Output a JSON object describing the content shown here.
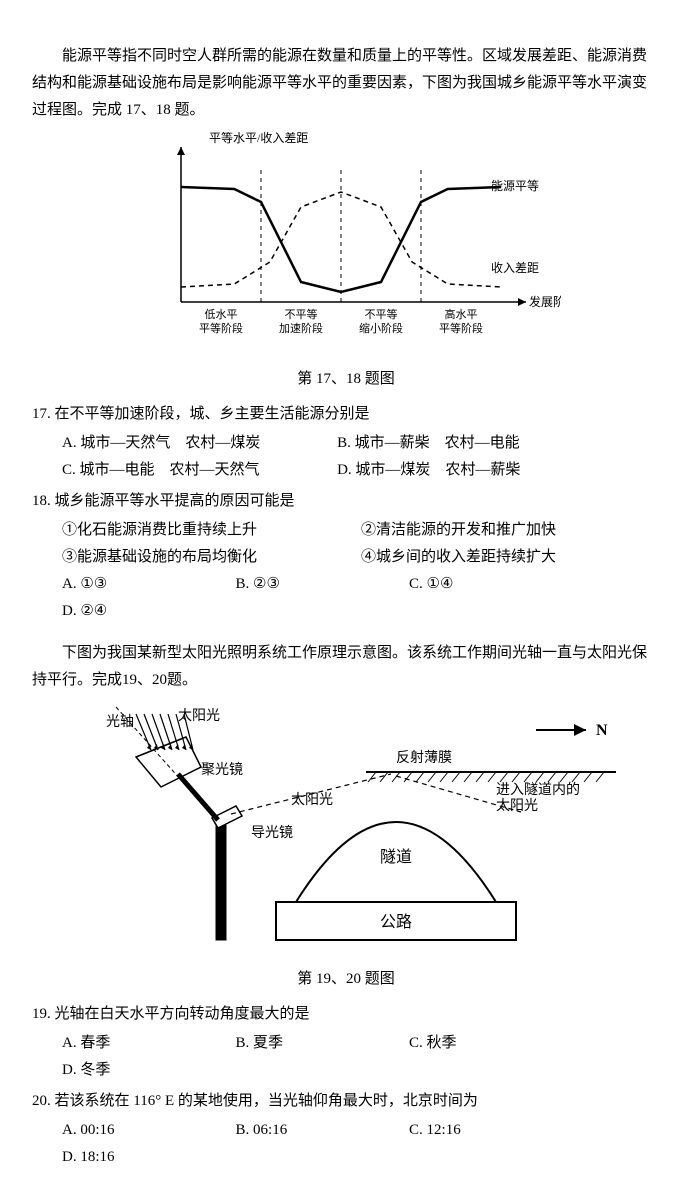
{
  "intro": {
    "p1": "能源平等指不同时空人群所需的能源在数量和质量上的平等性。区域发展差距、能源消费结构和能源基础设施布局是影响能源平等水平的重要因素，下图为我国城乡能源平等水平演变过程图。完成 17、18 题。"
  },
  "chart1": {
    "caption": "第 17、18 题图",
    "y_label": "平等水平/收入差距",
    "x_label": "发展阶段",
    "legend_solid": "能源平等",
    "legend_dashed": "收入差距",
    "x_ticks": [
      "低水平\n平等阶段",
      "不平等\n加速阶段",
      "不平等\n缩小阶段",
      "高水平\n平等阶段"
    ],
    "axis_color": "#000000",
    "solid_color": "#000000",
    "dashed_color": "#000000",
    "background": "#ffffff",
    "solid_points": [
      [
        0,
        25
      ],
      [
        60,
        27
      ],
      [
        90,
        40
      ],
      [
        135,
        120
      ],
      [
        180,
        130
      ],
      [
        225,
        120
      ],
      [
        270,
        40
      ],
      [
        300,
        27
      ],
      [
        360,
        25
      ]
    ],
    "dashed_points": [
      [
        0,
        125
      ],
      [
        60,
        122
      ],
      [
        100,
        100
      ],
      [
        135,
        45
      ],
      [
        180,
        30
      ],
      [
        225,
        45
      ],
      [
        260,
        100
      ],
      [
        300,
        122
      ],
      [
        360,
        125
      ]
    ],
    "ylim": [
      0,
      140
    ],
    "font_size_label": 12,
    "font_size_tick": 11
  },
  "q17": {
    "stem": "17. 在不平等加速阶段，城、乡主要生活能源分别是",
    "A": "A. 城市—天然气　农村—煤炭",
    "B": "B. 城市—薪柴　农村—电能",
    "C": "C. 城市—电能　农村—天然气",
    "D": "D. 城市—煤炭　农村—薪柴"
  },
  "q18": {
    "stem": "18. 城乡能源平等水平提高的原因可能是",
    "s1": "①化石能源消费比重持续上升",
    "s2": "②清洁能源的开发和推广加快",
    "s3": "③能源基础设施的布局均衡化",
    "s4": "④城乡间的收入差距持续扩大",
    "A": "A. ①③",
    "B": "B. ②③",
    "C": "C. ①④",
    "D": "D. ②④"
  },
  "intro2": {
    "p1": "下图为我国某新型太阳光照明系统工作原理示意图。该系统工作期间光轴一直与太阳光保持平行。完成19、20题。"
  },
  "chart2": {
    "caption": "第 19、20 题图",
    "labels": {
      "optical_axis": "光轴",
      "sunlight": "太阳光",
      "collector": "聚光镜",
      "guide_mirror": "导光镜",
      "sun_path": "太阳光",
      "film": "反射薄膜",
      "into_tunnel": "进入隧道内的\n太阳光",
      "tunnel": "隧道",
      "road": "公路",
      "north": "N"
    },
    "stroke": "#000000",
    "fill_bg": "#ffffff",
    "font_size": 14
  },
  "q19": {
    "stem": "19. 光轴在白天水平方向转动角度最大的是",
    "A": "A. 春季",
    "B": "B. 夏季",
    "C": "C. 秋季",
    "D": "D. 冬季"
  },
  "q20": {
    "stem": "20. 若该系统在 116° E 的某地使用，当光轴仰角最大时，北京时间为",
    "A": "A. 00:16",
    "B": "B. 06:16",
    "C": "C. 12:16",
    "D": "D. 18:16"
  }
}
